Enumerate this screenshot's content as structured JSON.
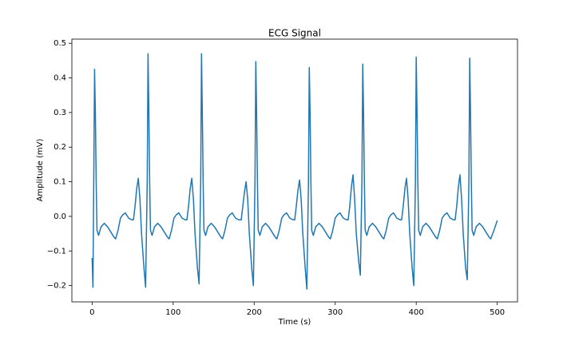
{
  "chart_data": {
    "type": "line",
    "title": "ECG Signal",
    "xlabel": "Time (s)",
    "ylabel": "Amplitude (mV)",
    "color": "#1f77b4",
    "xlim": [
      -25,
      525
    ],
    "ylim": [
      -0.247,
      0.512
    ],
    "xticks": [
      0,
      100,
      200,
      300,
      400,
      500
    ],
    "yticks": [
      {
        "value": -0.2,
        "label": "−0.2"
      },
      {
        "value": -0.1,
        "label": "−0.1"
      },
      {
        "value": 0,
        "label": "0.0"
      },
      0.1,
      0.2,
      0.3,
      0.4,
      0.5
    ],
    "x": [
      0,
      1,
      2,
      3,
      4,
      5,
      6,
      8,
      11,
      15,
      19,
      23,
      27,
      29,
      32,
      35,
      38,
      41,
      45,
      49,
      51,
      53,
      55,
      57,
      59,
      61,
      64,
      66,
      68,
      69,
      70,
      71,
      72,
      74,
      77,
      81,
      85,
      89,
      93,
      95,
      98,
      101,
      104,
      107,
      111,
      115,
      117,
      119,
      121,
      123,
      125,
      127,
      130,
      132,
      134,
      135,
      136,
      137,
      138,
      140,
      143,
      147,
      151,
      155,
      159,
      161,
      164,
      167,
      170,
      173,
      177,
      181,
      184,
      186,
      188,
      190,
      192,
      194,
      197,
      199,
      201,
      202,
      203,
      204,
      205,
      207,
      210,
      214,
      218,
      222,
      226,
      228,
      231,
      234,
      237,
      240,
      244,
      248,
      250,
      252,
      254,
      256,
      258,
      260,
      263,
      265,
      267,
      268,
      269,
      270,
      271,
      273,
      276,
      280,
      284,
      288,
      292,
      294,
      297,
      300,
      303,
      306,
      310,
      314,
      316,
      318,
      320,
      322,
      324,
      326,
      329,
      331,
      333,
      334,
      335,
      336,
      337,
      339,
      342,
      346,
      350,
      354,
      358,
      360,
      363,
      366,
      369,
      372,
      376,
      380,
      382,
      384,
      386,
      388,
      390,
      392,
      395,
      397,
      399,
      400,
      401,
      402,
      403,
      405,
      408,
      412,
      416,
      420,
      424,
      426,
      429,
      432,
      435,
      438,
      442,
      446,
      448,
      450,
      452,
      454,
      456,
      458,
      461,
      463,
      465,
      466,
      467,
      468,
      469,
      471,
      474,
      478,
      482,
      486,
      490,
      492,
      496,
      500
    ],
    "values": [
      -0.12,
      -0.205,
      0.1,
      0.425,
      0.3,
      0.1,
      -0.04,
      -0.055,
      -0.03,
      -0.02,
      -0.03,
      -0.045,
      -0.06,
      -0.065,
      -0.04,
      -0.005,
      0.005,
      0.01,
      -0.005,
      -0.01,
      -0.01,
      0.03,
      0.08,
      0.11,
      0.05,
      -0.05,
      -0.15,
      -0.205,
      0.1,
      0.47,
      0.3,
      0.1,
      -0.04,
      -0.055,
      -0.03,
      -0.02,
      -0.03,
      -0.045,
      -0.06,
      -0.065,
      -0.04,
      -0.005,
      0.005,
      0.01,
      -0.005,
      -0.01,
      -0.01,
      0.03,
      0.08,
      0.11,
      0.05,
      -0.05,
      -0.15,
      -0.195,
      0.1,
      0.47,
      0.3,
      0.1,
      -0.04,
      -0.055,
      -0.03,
      -0.02,
      -0.03,
      -0.045,
      -0.06,
      -0.065,
      -0.04,
      -0.005,
      0.005,
      0.01,
      -0.005,
      -0.01,
      -0.01,
      0.03,
      0.07,
      0.1,
      0.05,
      -0.05,
      -0.15,
      -0.2,
      0.1,
      0.447,
      0.3,
      0.1,
      -0.04,
      -0.055,
      -0.03,
      -0.02,
      -0.03,
      -0.045,
      -0.06,
      -0.065,
      -0.04,
      -0.005,
      0.005,
      0.01,
      -0.005,
      -0.01,
      -0.01,
      0.03,
      0.075,
      0.105,
      0.05,
      -0.05,
      -0.15,
      -0.21,
      0.1,
      0.43,
      0.3,
      0.1,
      -0.04,
      -0.055,
      -0.03,
      -0.02,
      -0.03,
      -0.045,
      -0.06,
      -0.065,
      -0.04,
      -0.005,
      0.005,
      0.01,
      -0.005,
      -0.01,
      -0.01,
      0.03,
      0.085,
      0.12,
      0.05,
      -0.05,
      -0.13,
      -0.17,
      0.1,
      0.44,
      0.3,
      0.1,
      -0.04,
      -0.055,
      -0.03,
      -0.02,
      -0.03,
      -0.045,
      -0.06,
      -0.065,
      -0.04,
      -0.005,
      0.005,
      0.01,
      -0.005,
      -0.01,
      -0.01,
      0.03,
      0.08,
      0.11,
      0.05,
      -0.05,
      -0.15,
      -0.2,
      0.1,
      0.46,
      0.3,
      0.1,
      -0.04,
      -0.055,
      -0.03,
      -0.02,
      -0.03,
      -0.045,
      -0.06,
      -0.065,
      -0.04,
      -0.005,
      0.005,
      0.01,
      -0.005,
      -0.01,
      -0.01,
      0.03,
      0.085,
      0.12,
      0.05,
      -0.05,
      -0.15,
      -0.183,
      0.1,
      0.457,
      0.3,
      0.1,
      -0.04,
      -0.055,
      -0.03,
      -0.02,
      -0.03,
      -0.045,
      -0.06,
      -0.065,
      -0.04,
      -0.012
    ]
  }
}
